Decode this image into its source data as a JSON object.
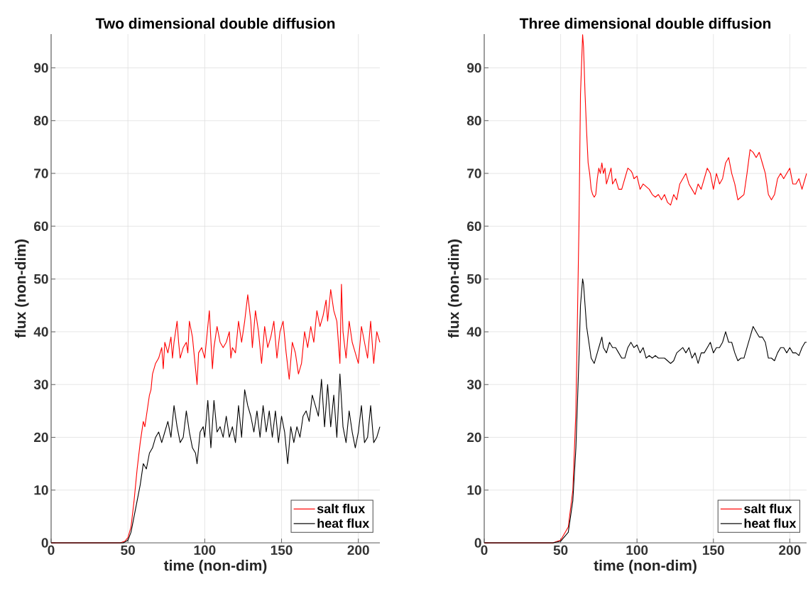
{
  "chart_data": [
    {
      "type": "line",
      "title": "Two dimensional double diffusion",
      "xlabel": "time (non-dim)",
      "ylabel": "flux (non-dim)",
      "xlim": [
        0,
        214
      ],
      "ylim": [
        0,
        96.4
      ],
      "xticks": [
        0,
        50,
        100,
        150,
        200
      ],
      "yticks": [
        0,
        10,
        20,
        30,
        40,
        50,
        60,
        70,
        80,
        90
      ],
      "grid": true,
      "legend": "bottom right",
      "line_style": "solid",
      "series": [
        {
          "name": "salt flux",
          "color": "#ff0000",
          "x": [
            0,
            45,
            48,
            50,
            52,
            54,
            56,
            58,
            60,
            61,
            62,
            64,
            65,
            66,
            68,
            70,
            72,
            73,
            74,
            76,
            78,
            79,
            80,
            82,
            83,
            84,
            86,
            88,
            89,
            90,
            92,
            94,
            95,
            96,
            98,
            100,
            101,
            103,
            105,
            106,
            108,
            110,
            112,
            114,
            116,
            117,
            118,
            120,
            122,
            124,
            126,
            128,
            130,
            131,
            133,
            135,
            137,
            139,
            141,
            143,
            145,
            147,
            149,
            151,
            153,
            155,
            157,
            159,
            161,
            163,
            165,
            167,
            169,
            171,
            173,
            175,
            177,
            179,
            180,
            182,
            184,
            186,
            188,
            189,
            190,
            192,
            194,
            196,
            198,
            200,
            202,
            204,
            206,
            208,
            210,
            212,
            214
          ],
          "values": [
            0,
            0,
            0.3,
            1,
            3,
            8,
            14,
            19,
            23,
            22,
            24,
            28,
            29,
            32,
            34,
            35,
            37,
            33,
            38,
            36,
            39,
            35,
            38,
            42,
            38,
            35,
            37,
            38,
            36,
            42,
            39,
            33,
            30,
            36,
            37,
            35,
            38,
            44,
            33,
            37,
            41,
            38,
            37,
            38,
            40,
            35,
            37,
            36,
            42,
            38,
            42,
            47,
            42,
            37,
            44,
            40,
            34,
            41,
            37,
            39,
            42,
            35,
            40,
            42,
            36,
            31,
            38,
            36,
            32,
            34,
            40,
            37,
            41,
            38,
            44,
            41,
            43,
            46,
            42,
            48,
            44,
            42,
            34,
            49,
            40,
            35,
            42,
            38,
            36,
            34,
            41,
            38,
            35,
            42,
            34,
            40,
            38
          ]
        },
        {
          "name": "heat flux",
          "color": "#000000",
          "x": [
            0,
            47,
            50,
            52,
            54,
            56,
            58,
            60,
            62,
            64,
            66,
            68,
            70,
            72,
            74,
            76,
            78,
            80,
            82,
            84,
            86,
            88,
            90,
            92,
            94,
            95,
            97,
            99,
            100,
            102,
            104,
            106,
            108,
            110,
            112,
            114,
            116,
            118,
            120,
            122,
            124,
            126,
            128,
            130,
            132,
            134,
            136,
            138,
            140,
            142,
            144,
            146,
            148,
            150,
            152,
            154,
            156,
            158,
            160,
            162,
            164,
            166,
            168,
            170,
            172,
            174,
            176,
            178,
            180,
            182,
            184,
            186,
            188,
            190,
            192,
            194,
            196,
            198,
            200,
            202,
            204,
            206,
            208,
            210,
            212,
            214
          ],
          "values": [
            0,
            0,
            0.5,
            2,
            5,
            8,
            11,
            15,
            14,
            17,
            18,
            20,
            21,
            19,
            21,
            23,
            20,
            26,
            22,
            19,
            20,
            25,
            21,
            18,
            17,
            15,
            21,
            22,
            20,
            27,
            18,
            27,
            21,
            22,
            20,
            24,
            20,
            22,
            19,
            26,
            20,
            29,
            26,
            24,
            21,
            25,
            20,
            26,
            21,
            25,
            20,
            25,
            19,
            24,
            21,
            15,
            22,
            19,
            22,
            20,
            24,
            25,
            23,
            28,
            26,
            24,
            31,
            22,
            30,
            22,
            28,
            20,
            32,
            22,
            19,
            25,
            21,
            18,
            21,
            26,
            19,
            20,
            26,
            19,
            20,
            22
          ]
        }
      ]
    },
    {
      "type": "line",
      "title": "Three dimensional double diffusion",
      "xlabel": "time (non-dim)",
      "ylabel": "flux (non-dim)",
      "xlim": [
        0,
        211
      ],
      "ylim": [
        0,
        96.4
      ],
      "xticks": [
        0,
        50,
        100,
        150,
        200
      ],
      "yticks": [
        0,
        10,
        20,
        30,
        40,
        50,
        60,
        70,
        80,
        90
      ],
      "grid": true,
      "legend": "bottom right",
      "line_style": "solid",
      "series": [
        {
          "name": "salt flux",
          "color": "#ff0000",
          "x": [
            0,
            45,
            50,
            55,
            58,
            60,
            62,
            63,
            64.4,
            65,
            66,
            67,
            68,
            69,
            70,
            71,
            72,
            73,
            74,
            75,
            76,
            77,
            78,
            79,
            80,
            82,
            83,
            84,
            86,
            88,
            90,
            92,
            94,
            96,
            97,
            98,
            100,
            102,
            104,
            106,
            108,
            110,
            112,
            114,
            116,
            118,
            120,
            122,
            124,
            126,
            128,
            130,
            132,
            134,
            136,
            138,
            140,
            142,
            144,
            146,
            148,
            150,
            152,
            154,
            156,
            158,
            160,
            162,
            164,
            166,
            168,
            170,
            172,
            174,
            176,
            178,
            180,
            182,
            184,
            186,
            188,
            190,
            192,
            194,
            196,
            198,
            200,
            202,
            204,
            206,
            208,
            210,
            211
          ],
          "values": [
            0,
            0,
            0.5,
            3,
            10,
            25,
            60,
            85,
            96.3,
            94,
            85,
            78,
            72,
            70,
            67,
            66,
            65.5,
            66,
            69,
            71,
            70,
            72,
            70,
            71,
            68,
            70,
            71,
            68,
            69,
            67,
            67,
            69,
            71,
            70.5,
            70,
            69,
            69.5,
            67,
            68,
            67.5,
            67,
            66,
            65.5,
            66,
            65,
            66,
            64.5,
            64,
            66,
            65,
            68,
            69,
            70,
            68,
            67,
            66,
            68,
            67,
            69,
            71,
            70,
            67,
            70,
            68,
            69,
            72,
            73,
            70,
            68,
            65,
            65.5,
            66,
            70,
            74.5,
            74,
            73,
            74,
            72,
            70,
            66,
            65,
            66,
            69,
            70,
            69,
            70,
            71,
            68,
            68,
            69,
            67,
            69,
            70
          ]
        },
        {
          "name": "heat flux",
          "color": "#000000",
          "x": [
            0,
            45,
            50,
            55,
            58,
            60,
            62,
            63,
            64.4,
            65,
            66,
            67,
            68,
            69,
            70,
            72,
            74,
            76,
            77,
            78,
            80,
            82,
            84,
            86,
            88,
            90,
            92,
            94,
            96,
            98,
            100,
            102,
            104,
            106,
            108,
            110,
            112,
            114,
            116,
            118,
            120,
            122,
            124,
            126,
            128,
            130,
            132,
            134,
            136,
            138,
            140,
            142,
            144,
            146,
            148,
            150,
            152,
            154,
            156,
            158,
            160,
            162,
            164,
            166,
            168,
            170,
            172,
            174,
            176,
            178,
            180,
            182,
            184,
            186,
            188,
            190,
            192,
            194,
            196,
            198,
            200,
            202,
            204,
            206,
            208,
            210,
            211
          ],
          "values": [
            0,
            0,
            0.3,
            2,
            8,
            18,
            35,
            45,
            50,
            49,
            45,
            41,
            39,
            37,
            35,
            34,
            36,
            38,
            39,
            37,
            36,
            38,
            37,
            37,
            36,
            35,
            35,
            37,
            38,
            37,
            37.5,
            36,
            37,
            35,
            35.5,
            35,
            35.5,
            35,
            35,
            35,
            34.5,
            34,
            34.5,
            36,
            36.5,
            37,
            36,
            37,
            35,
            36,
            34,
            36,
            36,
            37,
            38,
            36,
            37,
            37,
            38,
            40,
            38,
            38,
            36,
            34.5,
            35,
            35,
            37,
            39,
            41,
            40,
            39,
            39,
            38,
            35,
            35,
            34.5,
            36,
            37,
            37,
            36,
            37,
            36,
            36,
            35.5,
            37,
            38,
            38
          ]
        }
      ]
    }
  ]
}
